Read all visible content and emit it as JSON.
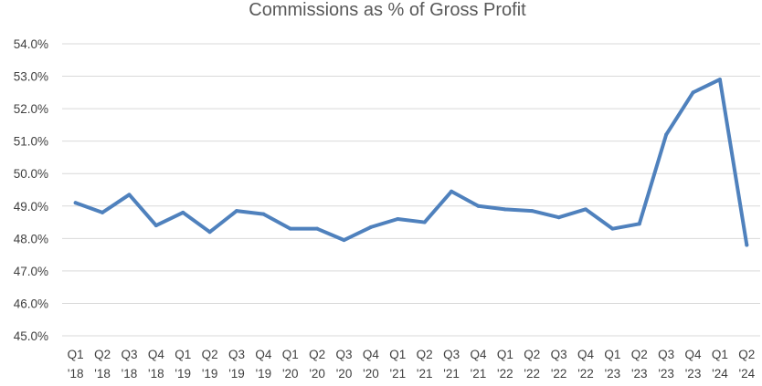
{
  "chart_data": {
    "type": "line",
    "title": "Commissions as % of Gross Profit",
    "xlabel": "",
    "ylabel": "",
    "ylim": [
      45.0,
      54.0
    ],
    "y_ticks": [
      "45.0%",
      "46.0%",
      "47.0%",
      "48.0%",
      "49.0%",
      "50.0%",
      "51.0%",
      "52.0%",
      "53.0%",
      "54.0%"
    ],
    "grid": true,
    "legend": "none",
    "categories": [
      {
        "q": "Q1",
        "y": "'18"
      },
      {
        "q": "Q2",
        "y": "'18"
      },
      {
        "q": "Q3",
        "y": "'18"
      },
      {
        "q": "Q4",
        "y": "'18"
      },
      {
        "q": "Q1",
        "y": "'19"
      },
      {
        "q": "Q2",
        "y": "'19"
      },
      {
        "q": "Q3",
        "y": "'19"
      },
      {
        "q": "Q4",
        "y": "'19"
      },
      {
        "q": "Q1",
        "y": "'20"
      },
      {
        "q": "Q2",
        "y": "'20"
      },
      {
        "q": "Q3",
        "y": "'20"
      },
      {
        "q": "Q4",
        "y": "'20"
      },
      {
        "q": "Q1",
        "y": "'21"
      },
      {
        "q": "Q2",
        "y": "'21"
      },
      {
        "q": "Q3",
        "y": "'21"
      },
      {
        "q": "Q4",
        "y": "'21"
      },
      {
        "q": "Q1",
        "y": "'22"
      },
      {
        "q": "Q2",
        "y": "'22"
      },
      {
        "q": "Q3",
        "y": "'22"
      },
      {
        "q": "Q4",
        "y": "'22"
      },
      {
        "q": "Q1",
        "y": "'23"
      },
      {
        "q": "Q2",
        "y": "'23"
      },
      {
        "q": "Q3",
        "y": "'23"
      },
      {
        "q": "Q4",
        "y": "'23"
      },
      {
        "q": "Q1",
        "y": "'24"
      },
      {
        "q": "Q2",
        "y": "'24"
      }
    ],
    "series": [
      {
        "values": [
          49.1,
          48.8,
          49.35,
          48.4,
          48.8,
          48.2,
          48.85,
          48.75,
          48.3,
          48.3,
          47.95,
          48.35,
          48.6,
          48.5,
          49.45,
          49.0,
          48.9,
          48.85,
          48.65,
          48.9,
          48.3,
          48.45,
          51.2,
          52.5,
          52.9,
          47.8
        ],
        "color": "#4f81bd"
      }
    ]
  }
}
